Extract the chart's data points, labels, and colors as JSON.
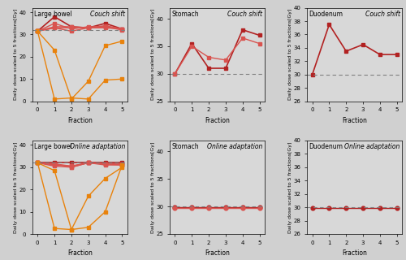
{
  "large_bowel_couch": {
    "red_lines": [
      [
        31.5,
        38.0,
        33.5,
        33.0,
        35.0,
        32.5
      ],
      [
        31.5,
        35.0,
        32.5,
        33.5,
        33.5,
        32.5
      ],
      [
        31.5,
        33.0,
        31.5,
        33.0,
        33.5,
        32.0
      ],
      [
        31.5,
        33.5,
        33.5,
        33.0,
        34.0,
        32.5
      ],
      [
        31.5,
        33.0,
        33.0,
        33.0,
        33.0,
        32.5
      ]
    ],
    "orange_lines": [
      [
        31.5,
        23.0,
        1.0,
        9.0,
        25.0,
        27.0
      ],
      [
        31.5,
        1.0,
        1.5,
        1.0,
        9.5,
        10.0
      ]
    ],
    "constraint": 32.0,
    "ylim": [
      0,
      42
    ],
    "yticks": [
      0,
      10,
      20,
      30,
      40
    ],
    "title_left": "Large bowel",
    "title_right": "Couch shift"
  },
  "stomach_couch": {
    "red_lines": [
      [
        30.0,
        35.5,
        31.0,
        31.0,
        38.0,
        37.0
      ],
      [
        30.0,
        35.0,
        33.0,
        32.5,
        36.5,
        35.5
      ]
    ],
    "constraint": 30.0,
    "ylim": [
      25,
      42
    ],
    "yticks": [
      25,
      30,
      35,
      40
    ],
    "title_left": "Stomach",
    "title_right": "Couch shift"
  },
  "duodenum_couch": {
    "red_lines": [
      [
        30.0,
        37.5,
        33.5,
        34.5,
        33.0,
        33.0
      ]
    ],
    "constraint": 30.0,
    "ylim": [
      26,
      40
    ],
    "yticks": [
      26,
      28,
      30,
      32,
      34,
      36,
      38,
      40
    ],
    "title_left": "Duodenum",
    "title_right": "Couch shift"
  },
  "large_bowel_online": {
    "red_lines": [
      [
        32.0,
        32.0,
        32.0,
        32.0,
        32.0,
        32.0
      ],
      [
        32.0,
        31.5,
        30.0,
        32.0,
        31.5,
        31.5
      ],
      [
        32.0,
        31.0,
        30.5,
        32.0,
        31.5,
        31.5
      ],
      [
        32.0,
        30.5,
        30.0,
        32.0,
        31.0,
        31.0
      ],
      [
        32.0,
        31.5,
        30.5,
        32.0,
        31.5,
        31.0
      ]
    ],
    "orange_lines": [
      [
        32.0,
        28.5,
        2.0,
        17.0,
        25.0,
        30.0
      ],
      [
        32.0,
        2.5,
        2.0,
        3.0,
        10.0,
        31.0
      ]
    ],
    "constraint": 32.0,
    "ylim": [
      0,
      42
    ],
    "yticks": [
      0,
      10,
      20,
      30,
      40
    ],
    "title_left": "Large bowel",
    "title_right": "Online adaptation"
  },
  "stomach_online": {
    "red_lines": [
      [
        29.9,
        29.9,
        29.9,
        29.9,
        29.9,
        29.9
      ],
      [
        29.8,
        29.8,
        29.8,
        29.8,
        29.8,
        29.8
      ]
    ],
    "constraint": 30.0,
    "ylim": [
      25,
      42
    ],
    "yticks": [
      25,
      30,
      35,
      40
    ],
    "title_left": "Stomach",
    "title_right": "Online adaptation"
  },
  "duodenum_online": {
    "red_lines": [
      [
        29.9,
        29.9,
        29.9,
        29.9,
        29.9,
        29.9
      ]
    ],
    "constraint": 30.0,
    "ylim": [
      26,
      40
    ],
    "yticks": [
      26,
      28,
      30,
      32,
      34,
      36,
      38,
      40
    ],
    "title_left": "Duodenum",
    "title_right": "Online adaptation"
  },
  "xlabel": "Fraction",
  "ylabel": "Daily dose scaled to 5 fractions[Gy]",
  "fractions": [
    0,
    1,
    2,
    3,
    4,
    5
  ],
  "red_color": "#d9534f",
  "orange_color": "#e8820c",
  "dark_red_color": "#c0392b",
  "marker_square": "s",
  "marker_circle": "o",
  "linewidth": 1.0,
  "markersize": 3.5
}
